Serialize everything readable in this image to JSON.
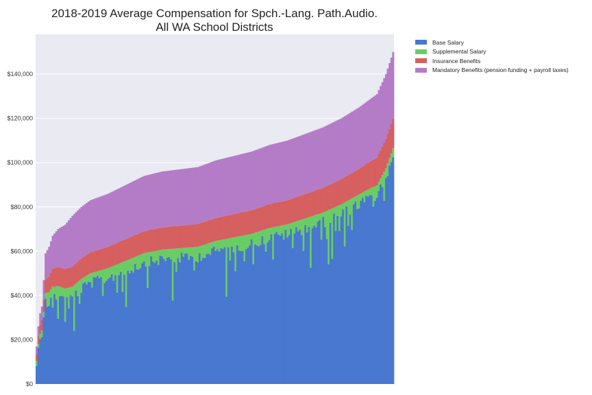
{
  "chart_data": {
    "type": "bar",
    "stacked": true,
    "title_lines": [
      "2018-2019 Average Compensation for Spch.-Lang. Path.Audio.",
      "All WA School Districts"
    ],
    "xlabel": "",
    "ylabel": "",
    "ylim": [
      0,
      158000
    ],
    "y_ticks": [
      0,
      20000,
      40000,
      60000,
      80000,
      100000,
      120000,
      140000
    ],
    "y_tick_labels": [
      "$0",
      "$20,000",
      "$40,000",
      "$60,000",
      "$80,000",
      "$100,000",
      "$120,000",
      "$140,000"
    ],
    "grid": true,
    "legend_position": "outside-top-right",
    "x_ticks_shown": false,
    "bar_count": 200,
    "series": [
      {
        "name": "Base Salary",
        "color": "#4878cf"
      },
      {
        "name": "Supplemental Salary",
        "color": "#6acc65"
      },
      {
        "name": "Insurance Benefits",
        "color": "#d65f5f"
      },
      {
        "name": "Mandatory Benefits (pension funding + payroll taxes)",
        "color": "#b47cc7"
      }
    ],
    "total_anchors": [
      [
        0,
        17000
      ],
      [
        1,
        26000
      ],
      [
        2,
        32000
      ],
      [
        3,
        35000
      ],
      [
        5,
        59000
      ],
      [
        7,
        62000
      ],
      [
        9,
        67000
      ],
      [
        12,
        70000
      ],
      [
        16,
        72000
      ],
      [
        20,
        76000
      ],
      [
        25,
        80000
      ],
      [
        30,
        83000
      ],
      [
        40,
        86000
      ],
      [
        50,
        90000
      ],
      [
        60,
        94000
      ],
      [
        70,
        96000
      ],
      [
        80,
        97000
      ],
      [
        90,
        98000
      ],
      [
        100,
        101000
      ],
      [
        110,
        103000
      ],
      [
        120,
        105000
      ],
      [
        130,
        108000
      ],
      [
        140,
        110000
      ],
      [
        150,
        113000
      ],
      [
        160,
        116000
      ],
      [
        170,
        120000
      ],
      [
        180,
        125000
      ],
      [
        190,
        131000
      ],
      [
        195,
        140000
      ],
      [
        199,
        150000
      ]
    ],
    "benefits_anchors": [
      [
        0,
        3500
      ],
      [
        3,
        6000
      ],
      [
        5,
        12000
      ],
      [
        20,
        23000
      ],
      [
        60,
        25000
      ],
      [
        100,
        26000
      ],
      [
        140,
        27000
      ],
      [
        170,
        27500
      ],
      [
        185,
        28000
      ],
      [
        199,
        30000
      ]
    ],
    "insurance_anchors": [
      [
        0,
        3000
      ],
      [
        5,
        6000
      ],
      [
        10,
        8500
      ],
      [
        30,
        9500
      ],
      [
        70,
        10000
      ],
      [
        110,
        10500
      ],
      [
        150,
        11000
      ],
      [
        180,
        11500
      ],
      [
        199,
        13500
      ]
    ],
    "supplemental_avg": 5000
  }
}
